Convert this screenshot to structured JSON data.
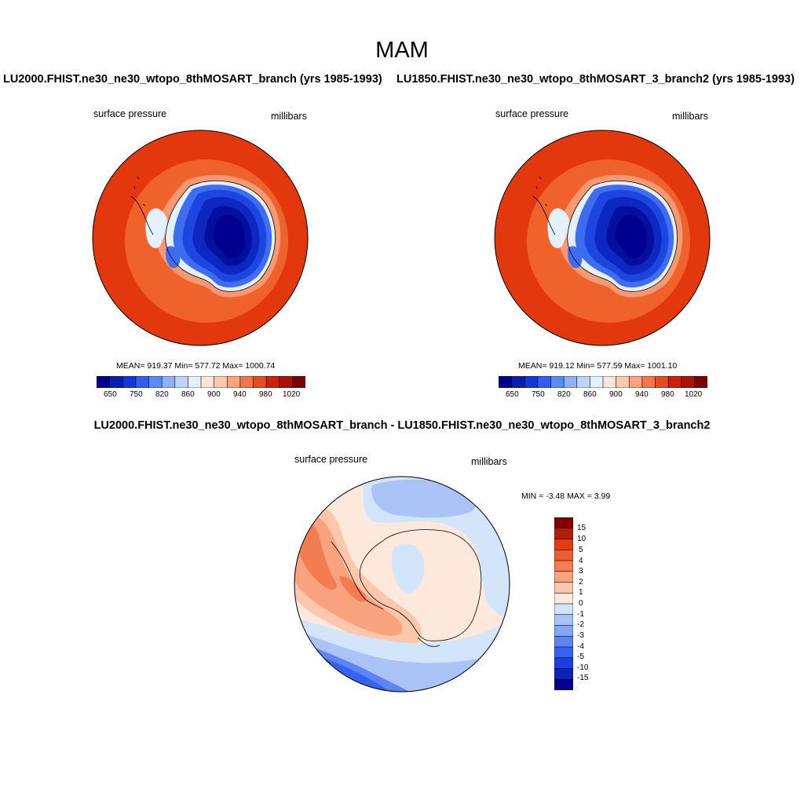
{
  "page": {
    "title": "MAM"
  },
  "panels": {
    "left": {
      "case_title": "LU2000.FHIST.ne30_ne30_wtopo_8thMOSART_branch (yrs 1985-1993)",
      "variable": "surface pressure",
      "units": "millibars",
      "stats": "MEAN= 919.37  Min= 577.72  Max= 1000.74"
    },
    "right": {
      "case_title": "LU1850.FHIST.ne30_ne30_wtopo_8thMOSART_3_branch2 (yrs 1985-1993)",
      "variable": "surface pressure",
      "units": "millibars",
      "stats": "MEAN= 919.12  Min= 577.59  Max= 1001.10"
    },
    "diff": {
      "case_title": "LU2000.FHIST.ne30_ne30_wtopo_8thMOSART_branch - LU1850.FHIST.ne30_ne30_wtopo_8thMOSART_3_branch2",
      "variable": "surface pressure",
      "units": "millibars",
      "stats": "MIN =  -3.48 MAX =   3.99"
    }
  },
  "colorbars": {
    "absolute": {
      "colors": [
        "#00008f",
        "#0a1fb0",
        "#1338d6",
        "#2f5ff2",
        "#5a8af5",
        "#8cb1f7",
        "#bcd3fa",
        "#e4f0fc",
        "#fde6d6",
        "#fcc9ad",
        "#f9a27e",
        "#f4744b",
        "#ea4a1f",
        "#cc2208",
        "#a91205",
        "#7e0202"
      ],
      "tick_labels": [
        "650",
        "750",
        "820",
        "860",
        "900",
        "940",
        "980",
        "1020"
      ]
    },
    "difference": {
      "colors": [
        "#00008f",
        "#0a24b8",
        "#1a3fe0",
        "#3563f0",
        "#5c84f2",
        "#84a6f5",
        "#aac4f8",
        "#d3e5fa",
        "#fde9dc",
        "#fcc7ab",
        "#f9a27e",
        "#f47c52",
        "#ee5c2f",
        "#e13d12",
        "#b51d06",
        "#830000"
      ],
      "tick_labels": [
        "15",
        "10",
        "5",
        "4",
        "3",
        "2",
        "1",
        "0",
        "-1",
        "-2",
        "-3",
        "-4",
        "-5",
        "-10",
        "-15"
      ]
    }
  },
  "map_colors": {
    "abs_outer": "#e3380e",
    "abs_band": "#f0622c",
    "abs_ring": "#f79a73",
    "abs_coast": "#e4f0fc",
    "abs_ice": [
      "#3f6df2",
      "#1d46de",
      "#0c28c0",
      "#030f9d",
      "#00008f"
    ],
    "diff_neg_light": "#d3e5fa",
    "diff_neg_mid": "#aac4f8",
    "diff_neg_dark": "#5c84f2",
    "diff_neg_deep": "#3563f0",
    "diff_pos_light": "#fde9dc",
    "diff_pos_mid": "#fcc7ab",
    "diff_pos_strong": "#f9a27e",
    "diff_pos_top": "#f47c52"
  }
}
